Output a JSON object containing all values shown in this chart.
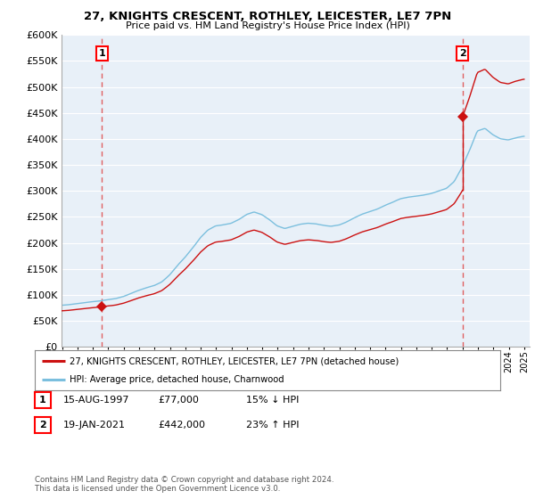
{
  "title": "27, KNIGHTS CRESCENT, ROTHLEY, LEICESTER, LE7 7PN",
  "subtitle": "Price paid vs. HM Land Registry's House Price Index (HPI)",
  "legend_line1": "27, KNIGHTS CRESCENT, ROTHLEY, LEICESTER, LE7 7PN (detached house)",
  "legend_line2": "HPI: Average price, detached house, Charnwood",
  "table_row1": [
    "1",
    "15-AUG-1997",
    "£77,000",
    "15% ↓ HPI"
  ],
  "table_row2": [
    "2",
    "19-JAN-2021",
    "£442,000",
    "23% ↑ HPI"
  ],
  "footnote": "Contains HM Land Registry data © Crown copyright and database right 2024.\nThis data is licensed under the Open Government Licence v3.0.",
  "sale1_year": 1997,
  "sale1_month": 8,
  "sale1_price": 77000,
  "sale2_year": 2021,
  "sale2_month": 1,
  "sale2_price": 442000,
  "hpi_color": "#7bbfde",
  "price_color": "#cc1111",
  "vline_color": "#e06060",
  "plot_bg_color": "#e8f0f8",
  "grid_color": "#ffffff",
  "ylim_max": 600000,
  "xlabel_fontsize": 7,
  "ylabel_fontsize": 8
}
